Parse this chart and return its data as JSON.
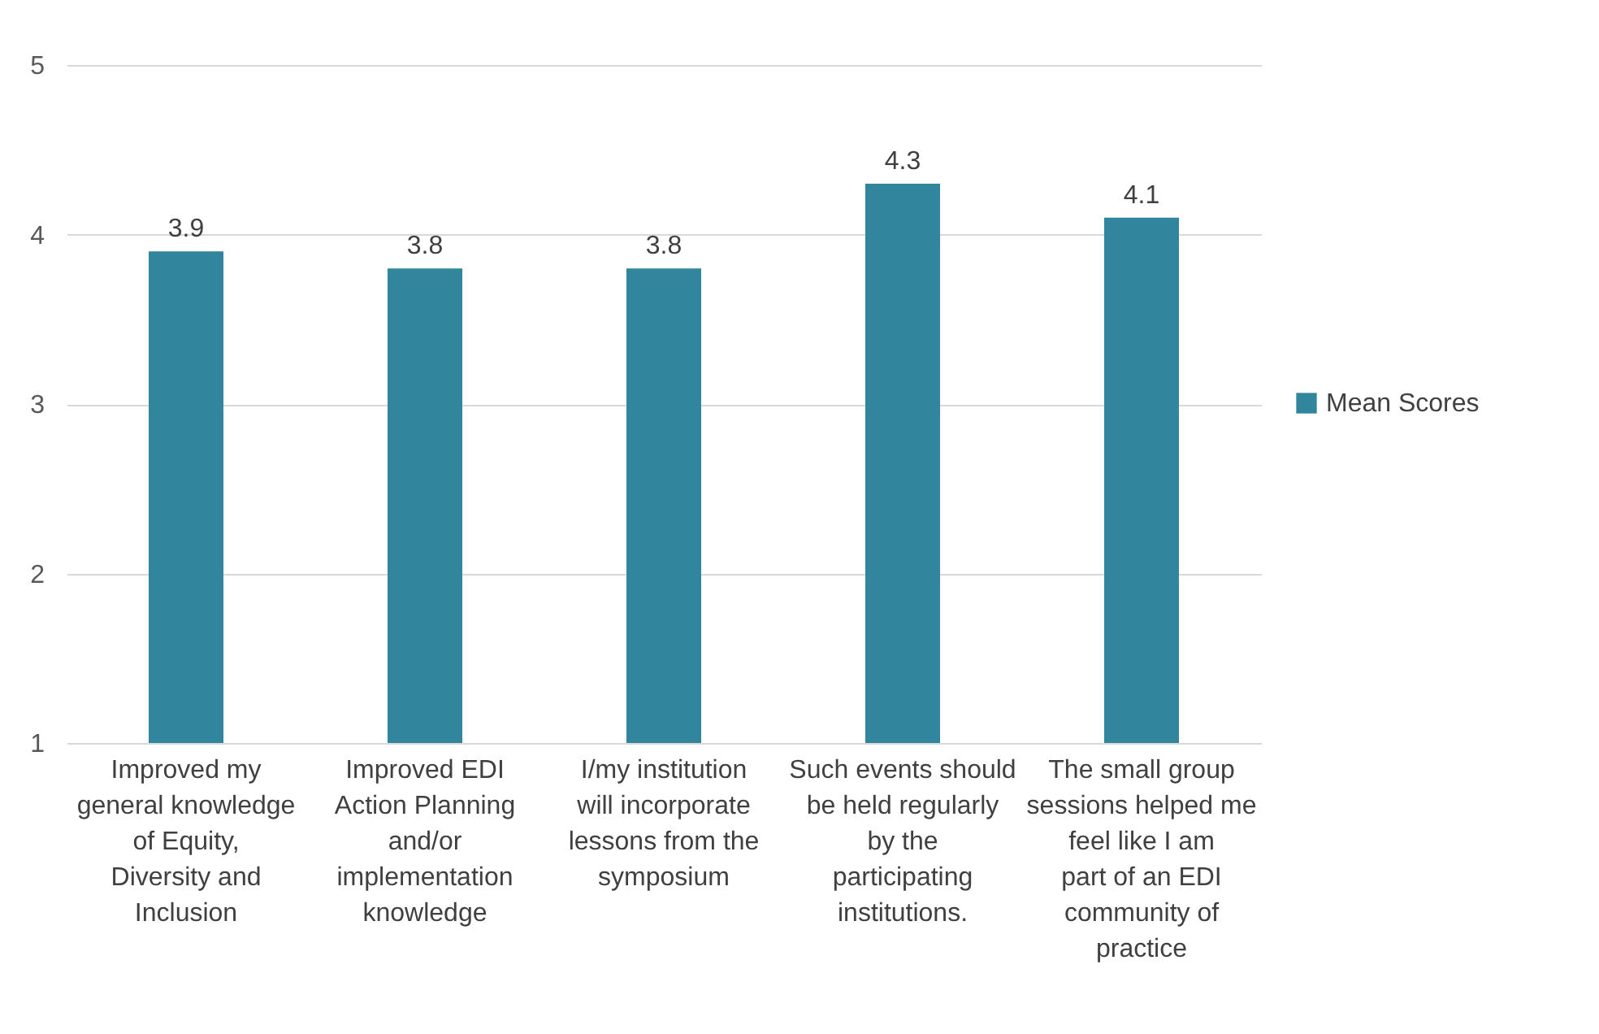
{
  "chart_data": {
    "type": "bar",
    "categories": [
      "Improved my general knowledge of Equity, Diversity and Inclusion",
      "Improved EDI Action Planning and/or implementation knowledge",
      "I/my institution will incorporate lessons from the symposium",
      "Such events should be held regularly by the participating institutions.",
      "The small group sessions helped me feel like I am part of an EDI community of practice"
    ],
    "series": [
      {
        "name": "Mean Scores",
        "color": "#31859c",
        "values": [
          3.9,
          3.8,
          3.8,
          4.3,
          4.1
        ]
      }
    ],
    "ylim": [
      1,
      5
    ],
    "yticks": [
      1,
      2,
      3,
      4,
      5
    ],
    "grid": "y",
    "legend": "right",
    "data_labels": true
  }
}
